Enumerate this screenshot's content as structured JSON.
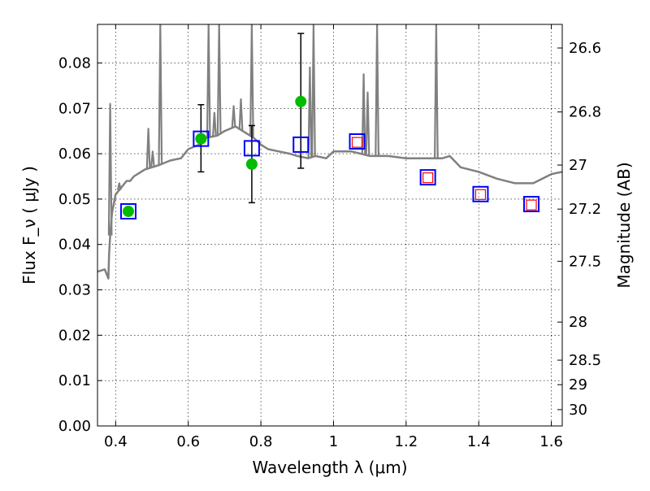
{
  "chart_data": {
    "type": "scatter",
    "title": "",
    "xlabel": "Wavelength  λ (μm)",
    "ylabel": "Flux  F_ν  ( μJy )",
    "ylabel_right": "Magnitude (AB)",
    "xlim": [
      0.35,
      1.63
    ],
    "ylim": [
      0.0,
      0.0885
    ],
    "x_ticks": [
      0.4,
      0.6,
      0.8,
      1.0,
      1.2,
      1.4,
      1.6
    ],
    "x_tick_labels": [
      "0.4",
      "0.6",
      "0.8",
      "1",
      "1.2",
      "1.4",
      "1.6"
    ],
    "y_ticks": [
      0.0,
      0.01,
      0.02,
      0.03,
      0.04,
      0.05,
      0.06,
      0.07,
      0.08
    ],
    "y_tick_labels": [
      "0.00",
      "0.01",
      "0.02",
      "0.03",
      "0.04",
      "0.05",
      "0.06",
      "0.07",
      "0.08"
    ],
    "right_ticks": [
      {
        "label": "26.6",
        "flux": 0.0833
      },
      {
        "label": "26.8",
        "flux": 0.0692
      },
      {
        "label": "27",
        "flux": 0.0575
      },
      {
        "label": "27.2",
        "flux": 0.0478
      },
      {
        "label": "27.5",
        "flux": 0.0363
      },
      {
        "label": "28",
        "flux": 0.0229
      },
      {
        "label": "28.5",
        "flux": 0.0145
      },
      {
        "label": "29",
        "flux": 0.0091
      },
      {
        "label": "30",
        "flux": 0.0036
      }
    ],
    "grid": true,
    "series": [
      {
        "kind": "line",
        "color": "#808080",
        "x": [
          0.35,
          0.37,
          0.375,
          0.38,
          0.382,
          0.385,
          0.39,
          0.395,
          0.4,
          0.41,
          0.42,
          0.43,
          0.44,
          0.45,
          0.46,
          0.47,
          0.48,
          0.5,
          0.52,
          0.55,
          0.58,
          0.6,
          0.63,
          0.65,
          0.68,
          0.7,
          0.73,
          0.75,
          0.78,
          0.8,
          0.82,
          0.85,
          0.88,
          0.9,
          0.93,
          0.95,
          0.98,
          1.0,
          1.05,
          1.1,
          1.15,
          1.2,
          1.25,
          1.3,
          1.32,
          1.35,
          1.4,
          1.45,
          1.5,
          1.55,
          1.6,
          1.63
        ],
        "y": [
          0.034,
          0.0345,
          0.0335,
          0.0325,
          0.038,
          0.042,
          0.047,
          0.049,
          0.051,
          0.052,
          0.053,
          0.054,
          0.054,
          0.055,
          0.0555,
          0.056,
          0.0565,
          0.057,
          0.0575,
          0.0585,
          0.059,
          0.061,
          0.062,
          0.0635,
          0.064,
          0.065,
          0.066,
          0.065,
          0.0635,
          0.062,
          0.061,
          0.0605,
          0.06,
          0.0595,
          0.059,
          0.0595,
          0.059,
          0.0605,
          0.0605,
          0.0595,
          0.0595,
          0.059,
          0.059,
          0.059,
          0.0595,
          0.057,
          0.056,
          0.0545,
          0.0535,
          0.0535,
          0.0555,
          0.056
        ]
      },
      {
        "kind": "line",
        "color": "#808080",
        "note": "emission-line spikes",
        "spikes": [
          {
            "x": 0.385,
            "y": 0.071
          },
          {
            "x": 0.41,
            "y": 0.0535
          },
          {
            "x": 0.49,
            "y": 0.0655
          },
          {
            "x": 0.502,
            "y": 0.0605
          },
          {
            "x": 0.523,
            "y": 0.0885
          },
          {
            "x": 0.656,
            "y": 0.0885
          },
          {
            "x": 0.672,
            "y": 0.069
          },
          {
            "x": 0.685,
            "y": 0.0885
          },
          {
            "x": 0.725,
            "y": 0.0705
          },
          {
            "x": 0.745,
            "y": 0.072
          },
          {
            "x": 0.775,
            "y": 0.0885
          },
          {
            "x": 0.935,
            "y": 0.079
          },
          {
            "x": 0.945,
            "y": 0.0885
          },
          {
            "x": 1.083,
            "y": 0.0775
          },
          {
            "x": 1.094,
            "y": 0.0735
          },
          {
            "x": 1.12,
            "y": 0.0885
          },
          {
            "x": 1.283,
            "y": 0.0885
          }
        ]
      },
      {
        "kind": "points",
        "marker": "circle",
        "color": "#00bb00",
        "points": [
          {
            "x": 0.435,
            "y": 0.0473
          },
          {
            "x": 0.635,
            "y": 0.0633,
            "err_low": 0.056,
            "err_high": 0.0708
          },
          {
            "x": 0.775,
            "y": 0.0577,
            "err_low": 0.0492,
            "err_high": 0.0662
          },
          {
            "x": 0.91,
            "y": 0.0715,
            "err_low": 0.0568,
            "err_high": 0.0865
          }
        ]
      },
      {
        "kind": "points",
        "marker": "open-square",
        "color": "#0000ff",
        "points": [
          {
            "x": 0.435,
            "y": 0.0473
          },
          {
            "x": 0.635,
            "y": 0.0633
          },
          {
            "x": 0.775,
            "y": 0.0612
          },
          {
            "x": 0.91,
            "y": 0.062
          },
          {
            "x": 1.065,
            "y": 0.0627
          },
          {
            "x": 1.26,
            "y": 0.0548
          },
          {
            "x": 1.405,
            "y": 0.0511
          },
          {
            "x": 1.545,
            "y": 0.0489
          }
        ]
      },
      {
        "kind": "points",
        "marker": "open-square-small",
        "color": "#ff0000",
        "points": [
          {
            "x": 1.065,
            "y": 0.0625
          },
          {
            "x": 1.26,
            "y": 0.0547
          },
          {
            "x": 1.405,
            "y": 0.051
          },
          {
            "x": 1.545,
            "y": 0.0487
          }
        ]
      }
    ]
  }
}
